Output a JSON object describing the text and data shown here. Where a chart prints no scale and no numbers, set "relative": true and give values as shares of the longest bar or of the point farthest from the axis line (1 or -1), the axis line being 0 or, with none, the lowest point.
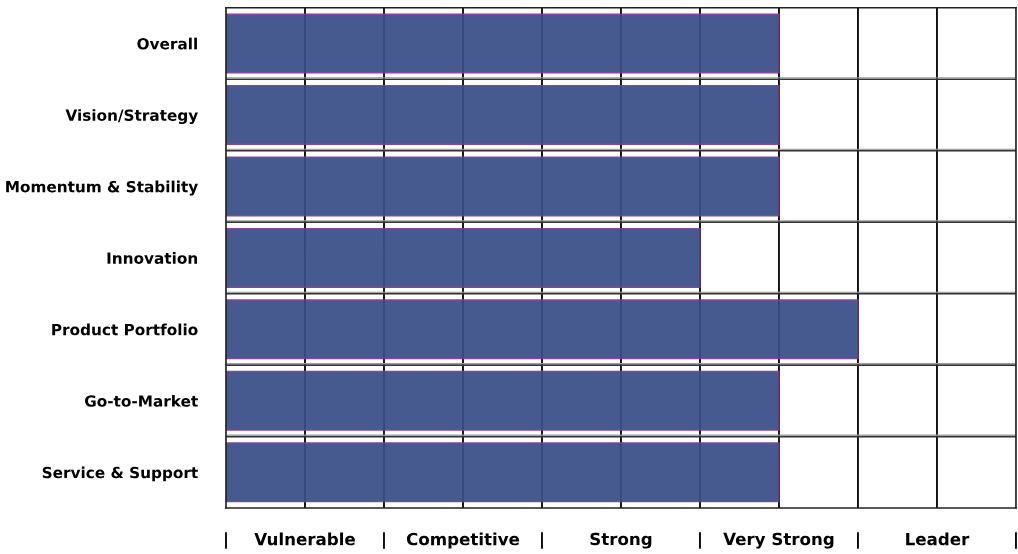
{
  "chart_data": {
    "type": "bar",
    "orientation": "horizontal",
    "relative": true,
    "categories": [
      "Overall",
      "Vision/Strategy",
      "Momentum & Stability",
      "Innovation",
      "Product Portfolio",
      "Go-to-Market",
      "Service & Support"
    ],
    "values": [
      0.875,
      0.875,
      0.875,
      0.75,
      1,
      0.875,
      0.875
    ],
    "color": "#3a4e87",
    "grid": true,
    "annotations": [
      "|",
      "Vulnerable",
      "|",
      "Competitive",
      "|",
      "Strong",
      "|",
      "Very Strong",
      "|",
      "Leader",
      "|"
    ]
  }
}
